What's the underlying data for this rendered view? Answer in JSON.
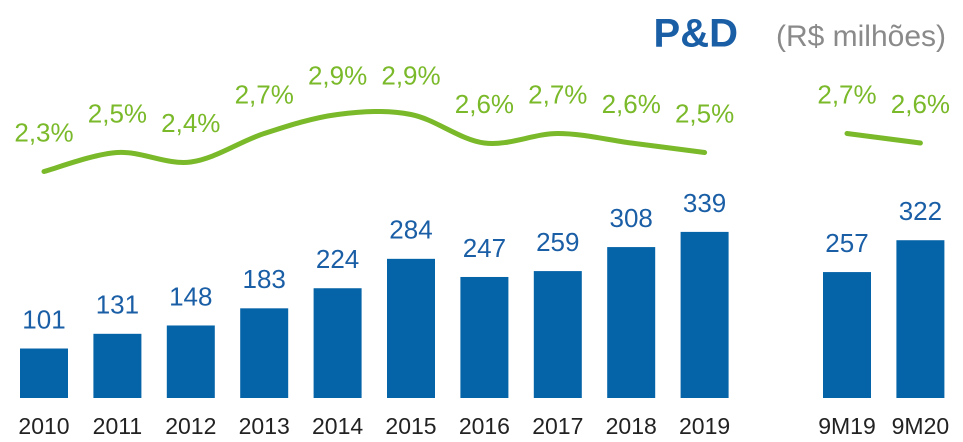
{
  "chart_data": {
    "type": "bar",
    "title": "P&D",
    "subtitle": "(R$ milhões)",
    "categories": [
      "2010",
      "2011",
      "2012",
      "2013",
      "2014",
      "2015",
      "2016",
      "2017",
      "2018",
      "2019",
      "9M19",
      "9M20"
    ],
    "series": [
      {
        "type": "bar",
        "color": "#0563a8",
        "values": [
          101,
          131,
          148,
          183,
          224,
          284,
          247,
          259,
          308,
          339,
          257,
          322
        ]
      },
      {
        "type": "line",
        "color": "#7ab929",
        "values": [
          2.3,
          2.5,
          2.4,
          2.7,
          2.9,
          2.9,
          2.6,
          2.7,
          2.6,
          2.5,
          2.7,
          2.6
        ],
        "value_labels": [
          "2,3%",
          "2,5%",
          "2,4%",
          "2,7%",
          "2,9%",
          "2,9%",
          "2,6%",
          "2,7%",
          "2,6%",
          "2,5%",
          "2,7%",
          "2,6%"
        ]
      }
    ]
  }
}
